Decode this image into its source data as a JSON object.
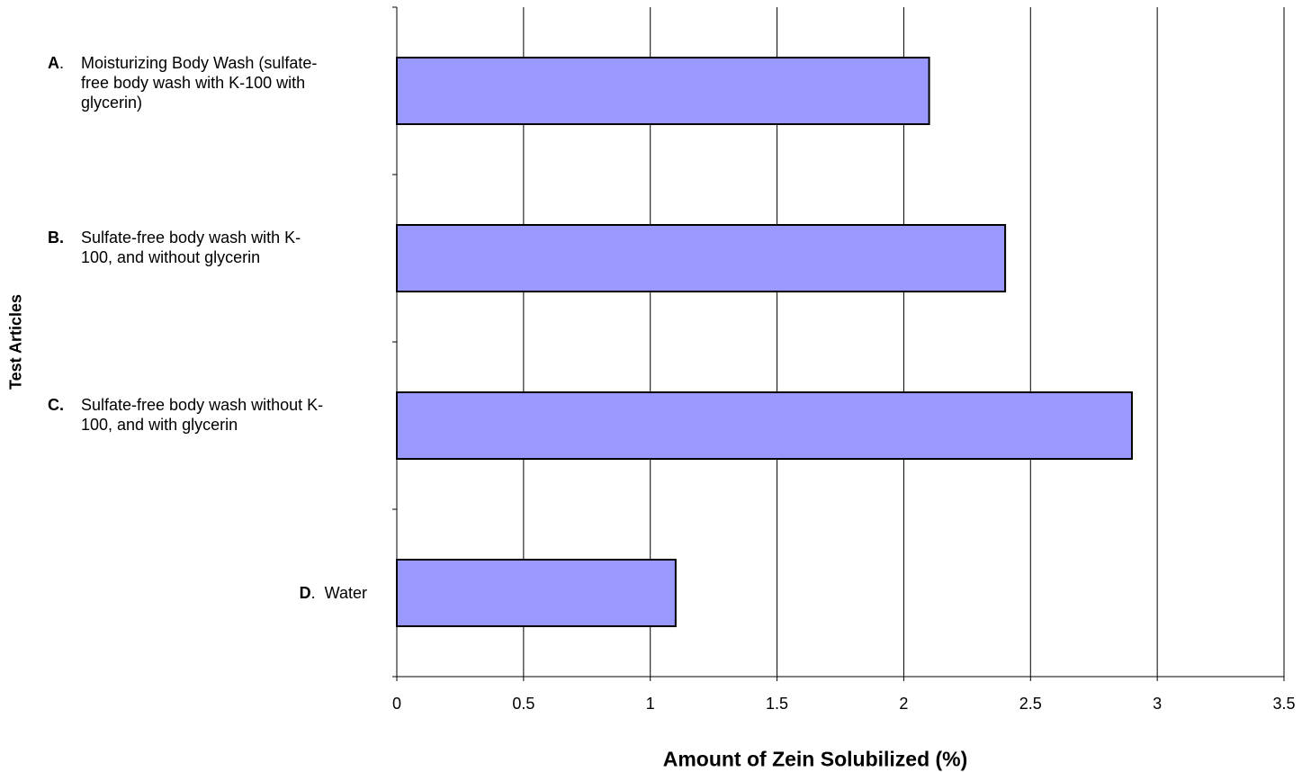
{
  "chart_data": {
    "type": "bar",
    "orientation": "horizontal",
    "xlabel": "Amount of Zein Solubilized (%)",
    "ylabel": "Test Articles",
    "xlim": [
      0,
      3.5
    ],
    "xticks": [
      "0",
      "0.5",
      "1",
      "1.5",
      "2",
      "2.5",
      "3",
      "3.5"
    ],
    "grid": "vertical",
    "bar_color": "#9999ff",
    "categories": [
      {
        "letter": "A",
        "sep": ".",
        "lines": [
          "Moisturizing Body Wash (sulfate-",
          "free body wash with K-100 with",
          "glycerin)"
        ]
      },
      {
        "letter": "B.",
        "sep": "",
        "lines": [
          "Sulfate-free body wash with K-",
          "100, and without glycerin"
        ]
      },
      {
        "letter": "C.",
        "sep": "",
        "lines": [
          "Sulfate-free body wash without K-",
          "100, and with glycerin"
        ]
      },
      {
        "letter": "D",
        "sep": ".",
        "lines": [
          "Water"
        ]
      }
    ],
    "values": [
      2.1,
      2.4,
      2.9,
      1.1
    ]
  }
}
